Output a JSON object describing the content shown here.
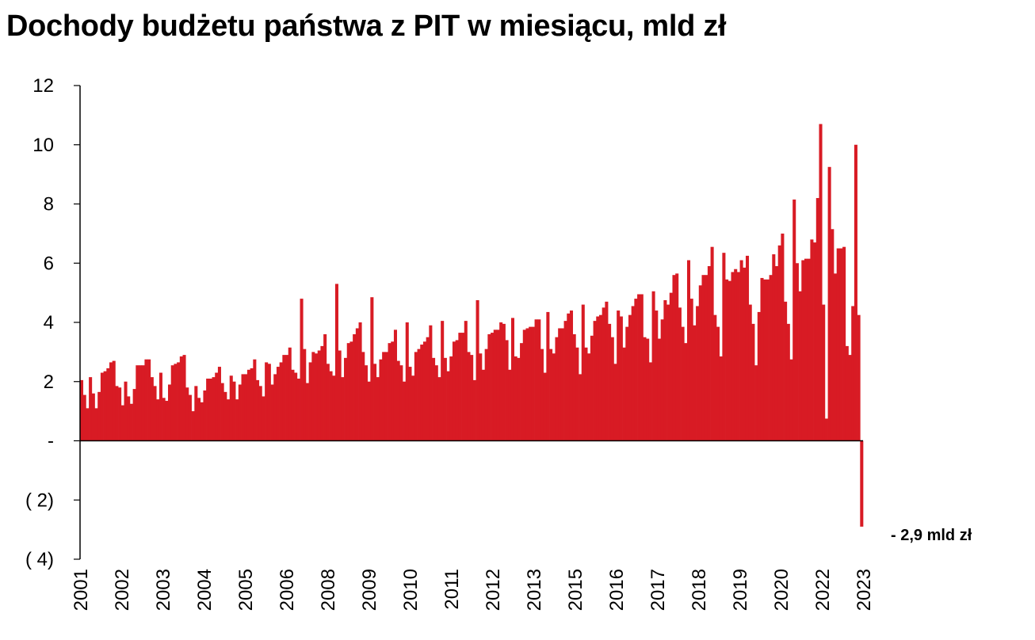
{
  "title": "Dochody budżetu państwa z PIT w miesiącu, mld zł",
  "colors": {
    "bar": "#d81b24",
    "axis": "#000000"
  },
  "chart_data": {
    "type": "bar",
    "title": "Dochody budżetu państwa z PIT w miesiącu, mld zł",
    "xlabel": "",
    "ylabel": "",
    "ylim": [
      -4,
      12
    ],
    "yticks": [
      {
        "value": 12,
        "label": "12"
      },
      {
        "value": 10,
        "label": "10"
      },
      {
        "value": 8,
        "label": "8"
      },
      {
        "value": 6,
        "label": "6"
      },
      {
        "value": 4,
        "label": "4"
      },
      {
        "value": 2,
        "label": "2"
      },
      {
        "value": 0,
        "label": "-"
      },
      {
        "value": -2,
        "label": "( 2)"
      },
      {
        "value": -4,
        "label": "( 4)"
      }
    ],
    "xticks": [
      "2001",
      "2002",
      "2003",
      "2004",
      "2005",
      "2006",
      "2008",
      "2009",
      "2010",
      "2011",
      "2012",
      "2013",
      "2015",
      "2016",
      "2017",
      "2018",
      "2019",
      "2020",
      "2022",
      "2023"
    ],
    "grid": false,
    "legend": "none",
    "annotation": "- 2,9 mld zł",
    "values": [
      2.05,
      1.55,
      1.1,
      2.15,
      1.6,
      1.1,
      1.65,
      2.3,
      2.35,
      2.45,
      2.65,
      2.7,
      1.85,
      1.8,
      1.2,
      2.0,
      1.5,
      1.25,
      1.75,
      2.55,
      2.55,
      2.55,
      2.75,
      2.75,
      2.15,
      1.85,
      1.4,
      2.3,
      1.45,
      1.35,
      1.9,
      2.55,
      2.6,
      2.65,
      2.85,
      2.9,
      1.8,
      1.55,
      1.0,
      1.85,
      1.45,
      1.3,
      1.7,
      2.1,
      2.1,
      2.15,
      2.3,
      2.5,
      1.95,
      1.65,
      1.4,
      2.2,
      2.0,
      1.4,
      1.9,
      2.25,
      2.25,
      2.4,
      2.45,
      2.75,
      2.05,
      1.85,
      1.5,
      2.65,
      2.6,
      1.9,
      2.25,
      2.5,
      2.65,
      2.9,
      2.9,
      3.15,
      2.4,
      2.3,
      2.1,
      4.8,
      3.1,
      1.95,
      2.65,
      3.0,
      2.95,
      3.05,
      3.2,
      3.6,
      2.6,
      2.35,
      2.2,
      5.3,
      3.05,
      2.15,
      2.8,
      3.3,
      3.35,
      3.6,
      3.8,
      4.0,
      3.0,
      2.55,
      2.0,
      4.85,
      2.6,
      2.15,
      2.75,
      3.0,
      3.0,
      3.3,
      3.35,
      3.75,
      2.7,
      2.55,
      2.0,
      4.0,
      2.5,
      2.2,
      3.0,
      3.1,
      3.25,
      3.35,
      3.5,
      3.9,
      2.8,
      2.55,
      2.15,
      4.05,
      2.8,
      2.35,
      2.85,
      3.35,
      3.4,
      3.65,
      3.65,
      4.05,
      3.0,
      2.9,
      2.05,
      4.75,
      2.95,
      2.4,
      3.1,
      3.6,
      3.65,
      3.75,
      3.75,
      4.0,
      3.95,
      3.4,
      2.4,
      4.15,
      2.85,
      2.8,
      3.3,
      3.75,
      3.8,
      3.85,
      3.85,
      4.1,
      4.1,
      3.1,
      2.3,
      4.35,
      3.1,
      2.95,
      3.5,
      3.8,
      3.8,
      4.05,
      4.3,
      4.4,
      3.6,
      3.15,
      2.25,
      4.6,
      3.15,
      2.95,
      3.55,
      4.05,
      4.2,
      4.25,
      4.5,
      4.7,
      3.95,
      3.5,
      2.6,
      4.4,
      4.2,
      3.15,
      3.85,
      4.25,
      4.55,
      4.8,
      4.95,
      4.95,
      3.5,
      3.45,
      2.65,
      5.05,
      4.4,
      3.45,
      4.1,
      4.75,
      4.6,
      5.0,
      5.6,
      5.65,
      4.5,
      3.85,
      3.3,
      6.1,
      4.8,
      3.9,
      4.55,
      5.25,
      5.6,
      5.6,
      5.9,
      6.55,
      4.25,
      3.85,
      2.85,
      6.35,
      5.45,
      5.4,
      5.7,
      5.8,
      5.7,
      6.1,
      5.85,
      6.25,
      4.6,
      3.95,
      2.55,
      4.35,
      5.5,
      5.45,
      5.45,
      5.6,
      6.3,
      5.9,
      6.6,
      7.0,
      4.7,
      3.95,
      2.75,
      8.15,
      6.0,
      5.05,
      6.1,
      6.15,
      6.15,
      6.8,
      6.7,
      8.2,
      10.7,
      4.6,
      0.75,
      9.25,
      7.15,
      5.65,
      6.5,
      6.5,
      6.55,
      3.2,
      2.9,
      4.55,
      10.0,
      4.25,
      -2.9
    ]
  }
}
